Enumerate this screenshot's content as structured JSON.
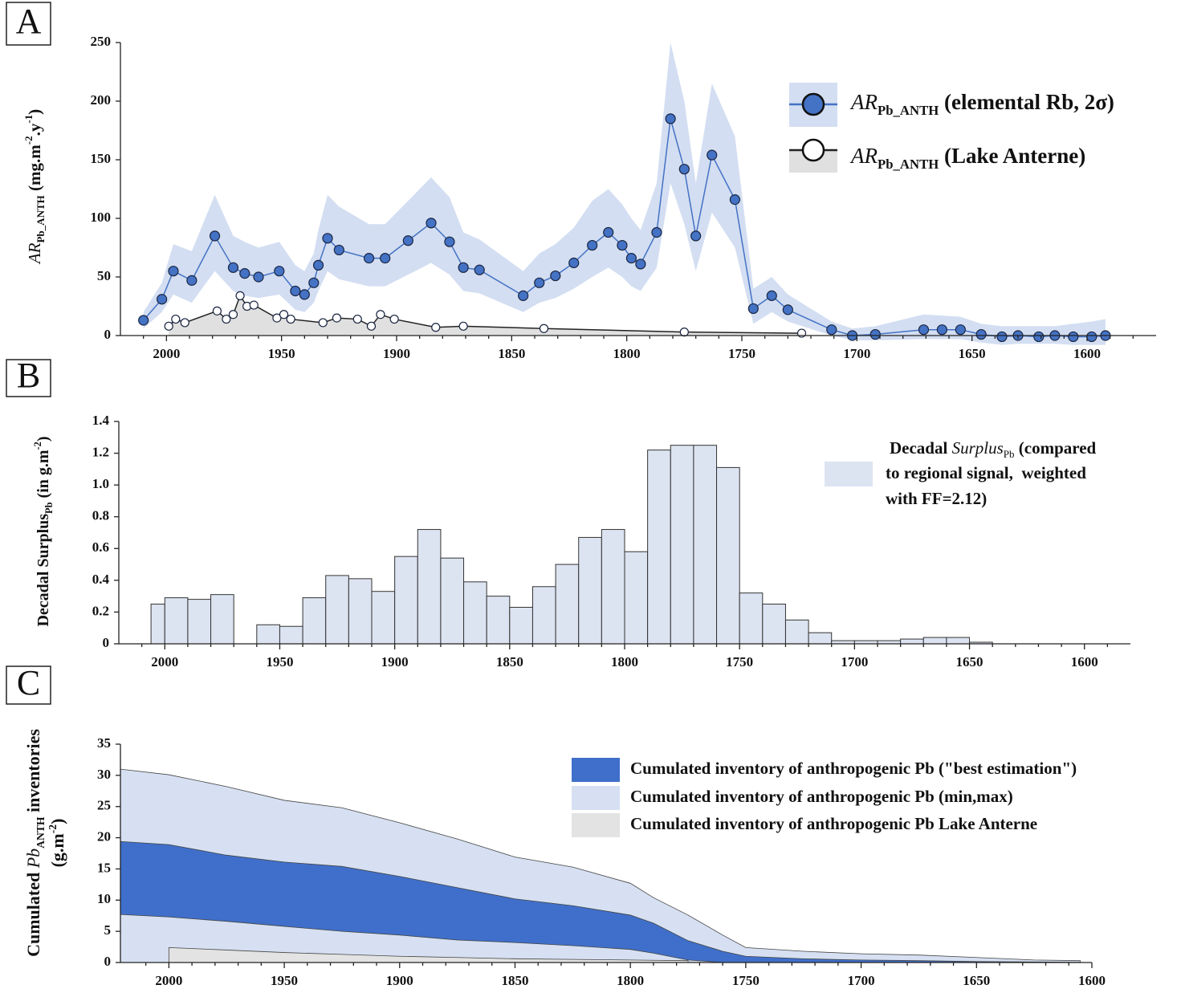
{
  "chart_data": [
    {
      "type": "line",
      "label": "A",
      "ylabel": [
        "AR",
        "Pb_ANTH",
        " (mg.m",
        "-2",
        ".y",
        "-1",
        ")"
      ],
      "xlim": [
        2020,
        1570
      ],
      "xticks": [
        2000,
        1950,
        1900,
        1850,
        1800,
        1750,
        1700,
        1650,
        1600
      ],
      "xminorticks": [
        2010,
        1990,
        1980,
        1970,
        1960,
        1940,
        1930,
        1920,
        1910,
        1890,
        1880,
        1870,
        1860,
        1840,
        1830,
        1820,
        1810,
        1790,
        1780,
        1770,
        1760,
        1740,
        1730,
        1720,
        1710,
        1690,
        1680,
        1670,
        1660,
        1640,
        1630,
        1620,
        1610,
        1590,
        1580
      ],
      "ylim": [
        0,
        250
      ],
      "yticks": [
        0,
        50,
        100,
        150,
        200,
        250
      ],
      "series": [
        {
          "name": [
            "AR",
            "Pb_ANTH",
            " (elemental Rb, 2σ)"
          ],
          "color": "#4472c4",
          "band_color": "#d3def2",
          "x": [
            2010,
            2002,
            1997,
            1989,
            1979,
            1971,
            1966,
            1960,
            1951,
            1944,
            1940,
            1936,
            1934,
            1930,
            1925,
            1912,
            1905,
            1895,
            1885,
            1877,
            1871,
            1864,
            1845,
            1838,
            1831,
            1823,
            1815,
            1808,
            1802,
            1798,
            1794,
            1787,
            1781,
            1775,
            1770,
            1763,
            1753,
            1745,
            1737,
            1730,
            1711,
            1702,
            1692,
            1671,
            1663,
            1655,
            1646,
            1637,
            1630,
            1621,
            1614,
            1606,
            1598,
            1592
          ],
          "values": [
            13,
            31,
            55,
            47,
            85,
            58,
            53,
            50,
            55,
            38,
            35,
            45,
            60,
            83,
            73,
            66,
            66,
            81,
            96,
            80,
            58,
            56,
            34,
            45,
            51,
            62,
            77,
            88,
            77,
            66,
            61,
            88,
            185,
            142,
            85,
            154,
            116,
            23,
            34,
            22,
            5,
            0,
            1,
            5,
            5,
            5,
            1,
            -1,
            0,
            -1,
            0,
            -1,
            -1,
            0
          ],
          "upper": [
            20,
            45,
            78,
            72,
            120,
            85,
            80,
            75,
            80,
            60,
            55,
            70,
            90,
            120,
            110,
            95,
            95,
            115,
            135,
            118,
            88,
            82,
            55,
            70,
            78,
            92,
            115,
            125,
            112,
            100,
            90,
            130,
            250,
            200,
            130,
            215,
            170,
            40,
            50,
            35,
            12,
            6,
            8,
            18,
            17,
            16,
            10,
            8,
            8,
            8,
            8,
            10,
            12,
            14
          ],
          "lower": [
            6,
            20,
            35,
            28,
            55,
            38,
            34,
            32,
            35,
            22,
            20,
            28,
            38,
            55,
            48,
            42,
            42,
            52,
            62,
            52,
            38,
            36,
            20,
            28,
            32,
            40,
            50,
            58,
            50,
            42,
            38,
            58,
            130,
            95,
            55,
            105,
            75,
            10,
            20,
            12,
            0,
            -4,
            -4,
            -3,
            -3,
            -3,
            -6,
            -8,
            -7,
            -7,
            -7,
            -8,
            -8,
            -8
          ]
        },
        {
          "name": [
            "AR",
            "Pb_ANTH",
            " (Lake Anterne)"
          ],
          "color": "#222222",
          "marker": "#ffffff",
          "fill": "#e0e0e0",
          "x": [
            1999,
            1996,
            1992,
            1978,
            1974,
            1971,
            1968,
            1965,
            1962,
            1952,
            1949,
            1946,
            1932,
            1926,
            1917,
            1911,
            1907,
            1901,
            1883,
            1871,
            1836,
            1775,
            1724
          ],
          "values": [
            8,
            14,
            11,
            21,
            14,
            18,
            34,
            25,
            26,
            15,
            18,
            14,
            11,
            15,
            14,
            8,
            18,
            14,
            7,
            8,
            6,
            3,
            2
          ]
        }
      ]
    },
    {
      "type": "histogram",
      "label": "B",
      "ylabel": [
        "Decadal Surplus",
        "Pb",
        " (in g.m",
        "-2",
        ")"
      ],
      "legend": [
        "Decadal ",
        "Surplus",
        "Pb",
        " (compared",
        "to regional signal,  weighted",
        "with FF=2.12)"
      ],
      "color": "#dce3f1",
      "xlim": [
        2020,
        1580
      ],
      "xticks": [
        2000,
        1950,
        1900,
        1850,
        1800,
        1750,
        1700,
        1650,
        1600
      ],
      "xminorticks": [
        2010,
        1990,
        1980,
        1970,
        1960,
        1940,
        1930,
        1920,
        1910,
        1890,
        1880,
        1870,
        1860,
        1840,
        1830,
        1820,
        1810,
        1790,
        1780,
        1770,
        1760,
        1740,
        1730,
        1720,
        1710,
        1690,
        1680,
        1670,
        1660,
        1640,
        1630,
        1620,
        1610,
        1590
      ],
      "ylim": [
        0,
        1.4
      ],
      "yticks": [
        0,
        0.2,
        0.4,
        0.6,
        0.8,
        {
          "value": 1,
          "label": "1.0"
        },
        1.2,
        1.4
      ],
      "bins": [
        2006,
        2000,
        1990,
        1980,
        1970,
        1960,
        1950,
        1940,
        1930,
        1920,
        1910,
        1900,
        1890,
        1880,
        1870,
        1860,
        1850,
        1840,
        1830,
        1820,
        1810,
        1800,
        1790,
        1780,
        1770,
        1760,
        1750,
        1740,
        1730,
        1720,
        1710,
        1700,
        1690,
        1680,
        1670,
        1660,
        1650,
        1640
      ],
      "values": [
        0.25,
        0.29,
        0.28,
        0.31,
        null,
        0.12,
        0.11,
        0.29,
        0.43,
        0.41,
        0.33,
        0.55,
        0.72,
        0.54,
        0.39,
        0.3,
        0.23,
        0.36,
        0.5,
        0.67,
        0.72,
        0.58,
        1.22,
        1.25,
        1.25,
        1.11,
        0.32,
        0.25,
        0.15,
        0.07,
        0.02,
        0.02,
        0.02,
        0.03,
        0.04,
        0.04,
        0.01
      ]
    },
    {
      "type": "area",
      "label": "C",
      "ylabel": [
        [
          "Cumulated ",
          "Pb",
          "ANTH",
          " inventories"
        ],
        [
          "(g.m",
          "-2",
          ")"
        ]
      ],
      "xlim": [
        2021,
        1600
      ],
      "xticks": [
        2000,
        1950,
        1900,
        1850,
        1800,
        1750,
        1700,
        1650,
        1600
      ],
      "xminorticks": [
        2010,
        1990,
        1980,
        1970,
        1960,
        1940,
        1930,
        1920,
        1910,
        1890,
        1880,
        1870,
        1860,
        1840,
        1830,
        1820,
        1810,
        1790,
        1780,
        1770,
        1760,
        1740,
        1730,
        1720,
        1710,
        1690,
        1680,
        1670,
        1660,
        1640,
        1630,
        1620,
        1610
      ],
      "ylim": [
        0,
        35
      ],
      "yticks": [
        0,
        5,
        10,
        15,
        20,
        25,
        30,
        35
      ],
      "x": [
        2021,
        2000,
        1975,
        1950,
        1925,
        1900,
        1875,
        1850,
        1825,
        1800,
        1790,
        1775,
        1760,
        1750,
        1725,
        1700,
        1675,
        1650,
        1625,
        1605
      ],
      "series": [
        {
          "name": "Cumulated inventory of anthropogenic Pb (\"best estimation\")",
          "color": "#3f6fca",
          "values": [
            19.4,
            18.9,
            17.2,
            16.1,
            15.4,
            13.8,
            12.0,
            10.2,
            9.1,
            7.6,
            6.3,
            3.5,
            1.8,
            1.0,
            0.6,
            0.4,
            0.3,
            0.15,
            0.1,
            0.05
          ],
          "lower": [
            7.7,
            7.3,
            6.6,
            5.8,
            5.0,
            4.4,
            3.6,
            3.2,
            2.7,
            2.1,
            1.5,
            0.4,
            0,
            0,
            0,
            0,
            0,
            0,
            0,
            0
          ]
        },
        {
          "name": "Cumulated inventory of anthropogenic Pb (min,max)",
          "color": "#d6e0f2",
          "values": [
            31.0,
            30.1,
            28.2,
            26.0,
            24.8,
            22.4,
            19.8,
            16.9,
            15.3,
            12.7,
            10.4,
            7.6,
            4.4,
            2.4,
            1.8,
            1.4,
            1.2,
            0.8,
            0.4,
            0.3
          ]
        },
        {
          "name": "Cumulated inventory of anthropogenic Pb Lake Anterne",
          "color": "#e3e3e3",
          "values": [
            null,
            2.4,
            2.0,
            1.6,
            1.3,
            1.0,
            0.8,
            0.6,
            0.5,
            0.4,
            0.35,
            0.3,
            null,
            null,
            null,
            null,
            null,
            null,
            null,
            null
          ]
        }
      ]
    }
  ]
}
